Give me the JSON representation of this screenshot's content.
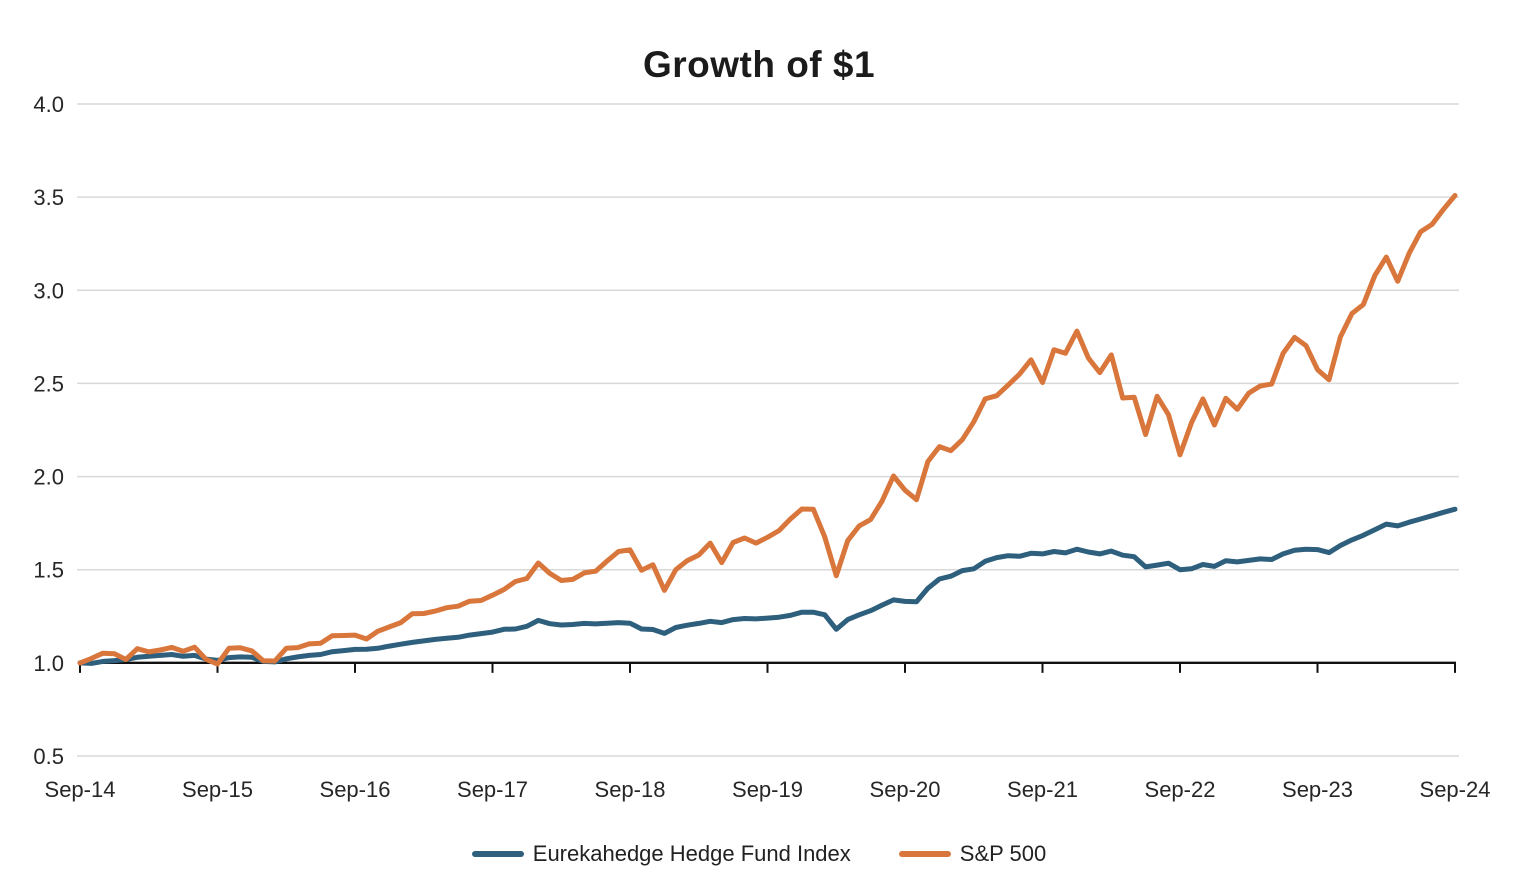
{
  "page": {
    "title": "Growth of $1"
  },
  "chart_data": {
    "type": "line",
    "title": "Growth of $1",
    "x_unit": "month",
    "x_range_labels": [
      "Sep-14",
      "Sep-24"
    ],
    "x_tick_labels": [
      "Sep-14",
      "Sep-15",
      "Sep-16",
      "Sep-17",
      "Sep-18",
      "Sep-19",
      "Sep-20",
      "Sep-21",
      "Sep-22",
      "Sep-23",
      "Sep-24"
    ],
    "y_ticks": [
      0.5,
      1.0,
      1.5,
      2.0,
      2.5,
      3.0,
      3.5,
      4.0
    ],
    "y_tick_labels": [
      "0.5",
      "1.0",
      "1.5",
      "2.0",
      "2.5",
      "3.0",
      "3.5",
      "4.0"
    ],
    "ylim": [
      0.5,
      4.0
    ],
    "baseline_value": 1.0,
    "grid": "horizontal",
    "legend_position": "bottom",
    "colors": {
      "grid": "#D9D9D9",
      "axis": "#111111",
      "tick_text": "#262626",
      "title_text": "#1B1B1B"
    },
    "series": [
      {
        "name": "Eurekahedge Hedge Fund Index",
        "color": "#2E5F7D",
        "values": [
          1.0,
          0.997,
          1.008,
          1.012,
          1.018,
          1.03,
          1.035,
          1.04,
          1.045,
          1.035,
          1.04,
          1.02,
          1.013,
          1.028,
          1.032,
          1.03,
          1.008,
          1.005,
          1.022,
          1.032,
          1.04,
          1.045,
          1.06,
          1.066,
          1.072,
          1.073,
          1.078,
          1.09,
          1.1,
          1.11,
          1.118,
          1.126,
          1.132,
          1.137,
          1.149,
          1.157,
          1.165,
          1.18,
          1.182,
          1.196,
          1.228,
          1.21,
          1.203,
          1.206,
          1.212,
          1.209,
          1.213,
          1.216,
          1.213,
          1.182,
          1.179,
          1.158,
          1.19,
          1.202,
          1.212,
          1.223,
          1.216,
          1.232,
          1.238,
          1.236,
          1.24,
          1.245,
          1.255,
          1.272,
          1.272,
          1.258,
          1.18,
          1.232,
          1.258,
          1.28,
          1.31,
          1.338,
          1.33,
          1.328,
          1.4,
          1.45,
          1.465,
          1.495,
          1.505,
          1.545,
          1.565,
          1.575,
          1.572,
          1.588,
          1.585,
          1.598,
          1.59,
          1.61,
          1.595,
          1.585,
          1.6,
          1.578,
          1.57,
          1.515,
          1.525,
          1.535,
          1.5,
          1.505,
          1.528,
          1.518,
          1.548,
          1.542,
          1.55,
          1.558,
          1.555,
          1.585,
          1.605,
          1.61,
          1.608,
          1.592,
          1.63,
          1.66,
          1.685,
          1.715,
          1.745,
          1.735,
          1.755,
          1.772,
          1.79,
          1.808,
          1.825
        ]
      },
      {
        "name": "S&P 500",
        "color": "#D9763B",
        "values": [
          1.0,
          1.024,
          1.052,
          1.049,
          1.018,
          1.076,
          1.059,
          1.069,
          1.083,
          1.062,
          1.084,
          1.019,
          0.994,
          1.078,
          1.081,
          1.064,
          1.011,
          1.01,
          1.078,
          1.082,
          1.102,
          1.105,
          1.145,
          1.147,
          1.149,
          1.128,
          1.17,
          1.193,
          1.216,
          1.264,
          1.265,
          1.278,
          1.296,
          1.304,
          1.331,
          1.335,
          1.363,
          1.394,
          1.437,
          1.453,
          1.536,
          1.48,
          1.442,
          1.448,
          1.483,
          1.492,
          1.547,
          1.598,
          1.607,
          1.497,
          1.527,
          1.389,
          1.5,
          1.549,
          1.579,
          1.643,
          1.538,
          1.646,
          1.67,
          1.643,
          1.674,
          1.71,
          1.772,
          1.826,
          1.825,
          1.675,
          1.468,
          1.656,
          1.735,
          1.769,
          1.869,
          2.003,
          1.927,
          1.876,
          2.081,
          2.161,
          2.139,
          2.198,
          2.294,
          2.417,
          2.434,
          2.491,
          2.55,
          2.627,
          2.505,
          2.681,
          2.662,
          2.781,
          2.637,
          2.558,
          2.653,
          2.422,
          2.426,
          2.226,
          2.431,
          2.332,
          2.117,
          2.289,
          2.417,
          2.277,
          2.42,
          2.361,
          2.448,
          2.486,
          2.497,
          2.662,
          2.747,
          2.703,
          2.574,
          2.52,
          2.75,
          2.875,
          2.923,
          3.079,
          3.178,
          3.048,
          3.199,
          3.314,
          3.354,
          3.435,
          3.509
        ]
      }
    ]
  }
}
